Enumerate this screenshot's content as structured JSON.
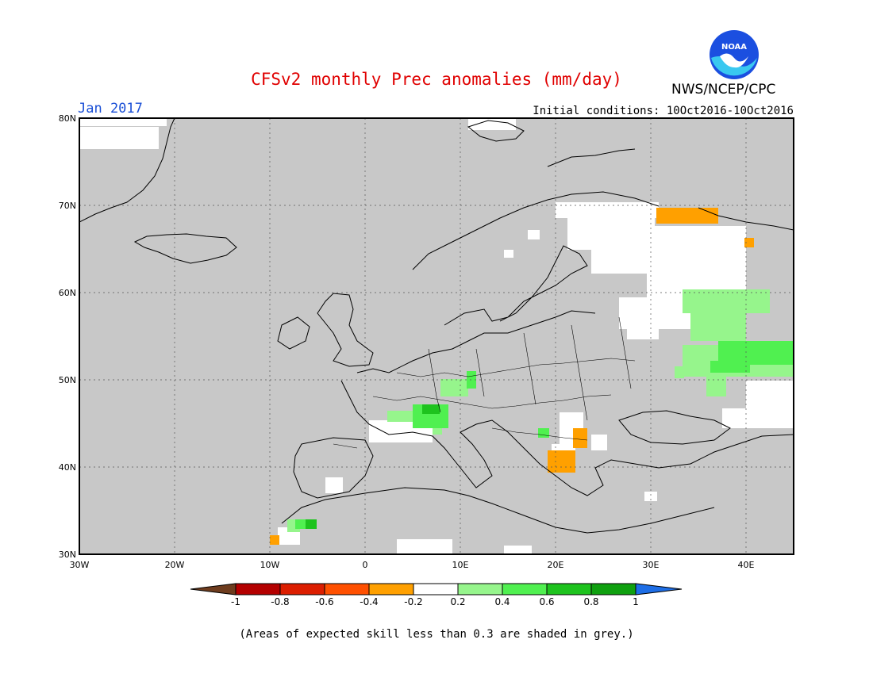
{
  "title": "CFSv2 monthly Prec anomalies (mm/day)",
  "valid_month": "Jan 2017",
  "agency": "NWS/NCEP/CPC",
  "logo_text": "NOAA",
  "initial_conditions": "Initial conditions: 10Oct2016-10Oct2016",
  "footnote": "(Areas of expected skill less than 0.3 are shaded in grey.)",
  "map": {
    "lat_labels": [
      "80N",
      "70N",
      "60N",
      "50N",
      "40N",
      "30N"
    ],
    "lon_labels": [
      "30W",
      "20W",
      "10W",
      "0",
      "10E",
      "20E",
      "30E",
      "40E"
    ],
    "colors": {
      "ocean_land_grey": "#c8c8c8",
      "neutral": "#ffffff",
      "dry_0_2": "#ffa000",
      "dry_0_4": "#ff5000",
      "wet_0_2": "#96f58c",
      "wet_0_4": "#50f050",
      "wet_0_6": "#1ec31e"
    }
  },
  "colorbar": {
    "tick_labels": [
      "-1",
      "-0.8",
      "-0.6",
      "-0.4",
      "-0.2",
      "0.2",
      "0.4",
      "0.6",
      "0.8",
      "1"
    ],
    "colors": [
      "#6e3c1e",
      "#b40000",
      "#dc1e00",
      "#ff5000",
      "#ffa000",
      "#ffffff",
      "#96f58c",
      "#50f050",
      "#1ec31e",
      "#0fa00f",
      "#1e6ee6"
    ]
  }
}
